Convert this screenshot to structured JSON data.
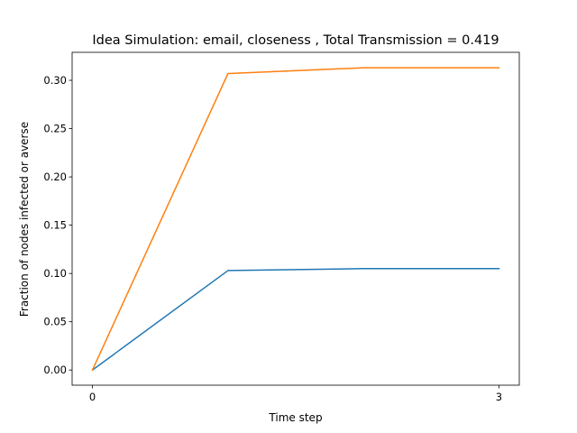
{
  "chart_data": {
    "type": "line",
    "title": "Idea Simulation: email, closeness , Total Transmission = 0.419",
    "xlabel": "Time step",
    "ylabel": "Fraction of nodes infected or averse",
    "x": [
      0,
      1,
      2,
      3
    ],
    "x_ticks": [
      0,
      3
    ],
    "y_ticks": [
      0.0,
      0.05,
      0.1,
      0.15,
      0.2,
      0.25,
      0.3
    ],
    "y_tick_labels": [
      "0.00",
      "0.05",
      "0.10",
      "0.15",
      "0.20",
      "0.25",
      "0.30"
    ],
    "xlim": [
      -0.15,
      3.15
    ],
    "ylim": [
      -0.0157,
      0.329
    ],
    "grid": false,
    "series": [
      {
        "values": [
          0.0,
          0.103,
          0.105,
          0.105
        ],
        "color": "#1f77b4"
      },
      {
        "values": [
          0.0,
          0.307,
          0.313,
          0.313
        ],
        "color": "#ff7f0e"
      }
    ]
  }
}
